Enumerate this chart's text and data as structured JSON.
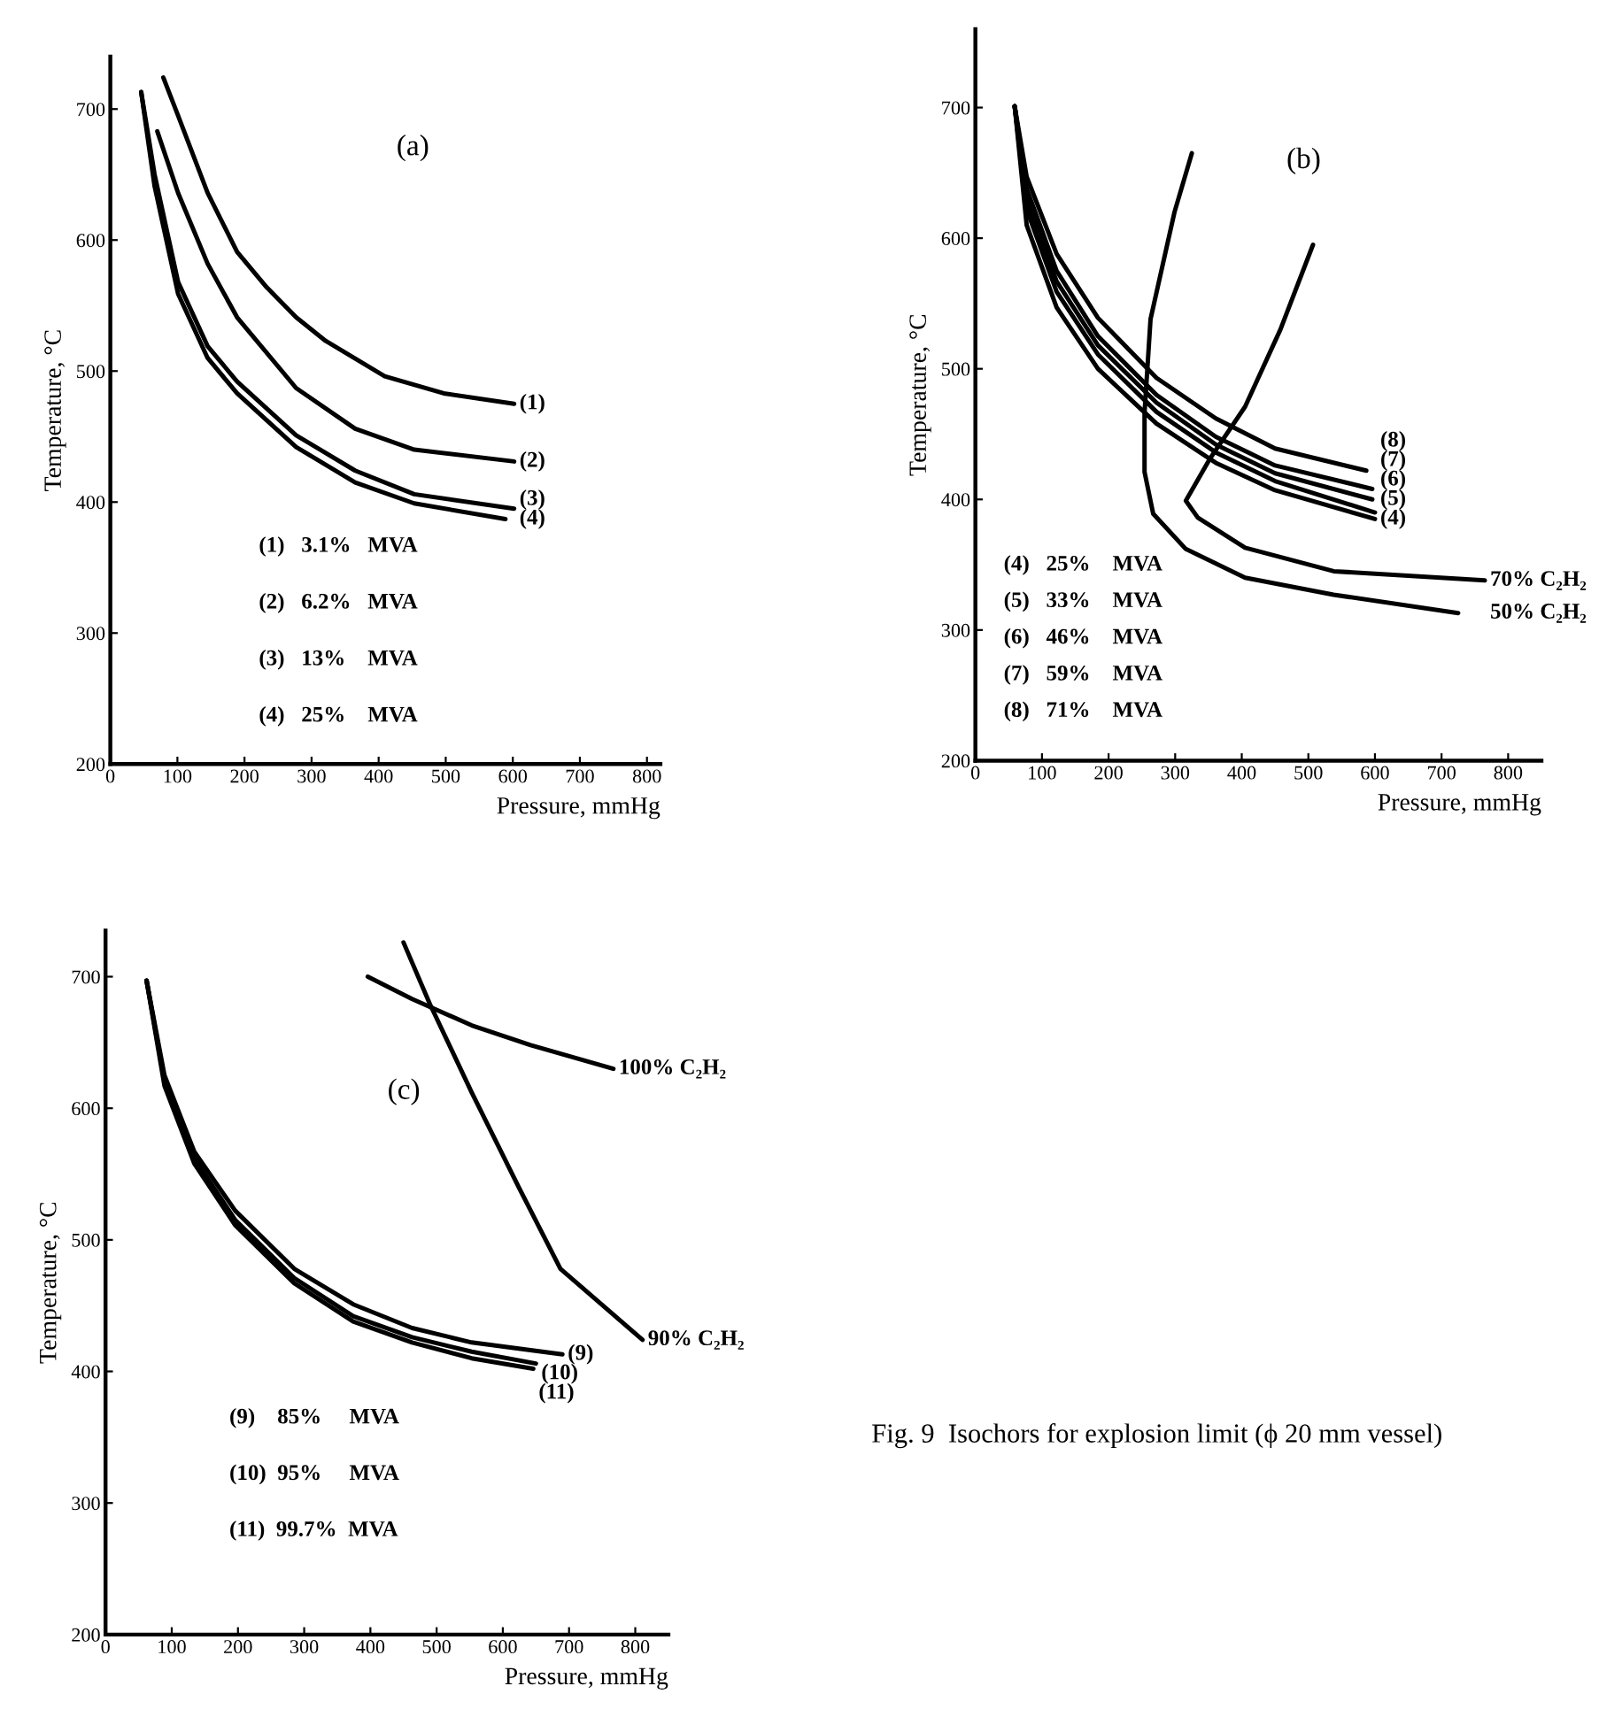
{
  "chart_data": [
    {
      "type": "line",
      "title": "(a)",
      "xlabel": "Pressure, mmHg",
      "ylabel": "Temperature, °C",
      "xlim": [
        0,
        820
      ],
      "ylim": [
        200,
        740
      ],
      "xticks": [
        0,
        100,
        200,
        300,
        400,
        500,
        600,
        700,
        800
      ],
      "yticks": [
        200,
        300,
        400,
        500,
        600,
        700
      ],
      "line_style": "solid",
      "annotations": [
        "(1)   3.1%   MVA",
        "(2)   6.2%   MVA",
        "(3)   13%    MVA",
        "(4)   25%    MVA"
      ],
      "series": [
        {
          "name": "(1)",
          "color": "#000000",
          "x": [
            79,
            101,
            145,
            189,
            233,
            277,
            321,
            409,
            497,
            602
          ],
          "values": [
            724,
            695,
            636,
            591,
            564,
            541,
            523,
            496,
            483,
            475
          ]
        },
        {
          "name": "(2)",
          "color": "#000000",
          "x": [
            70,
            101,
            145,
            189,
            277,
            365,
            453,
            602
          ],
          "values": [
            683,
            636,
            582,
            541,
            487,
            456,
            440,
            431
          ]
        },
        {
          "name": "(3)",
          "color": "#000000",
          "x": [
            46,
            66,
            101,
            145,
            189,
            277,
            365,
            453,
            602
          ],
          "values": [
            713,
            650,
            568,
            519,
            492,
            451,
            424,
            406,
            395
          ]
        },
        {
          "name": "(4)",
          "color": "#000000",
          "x": [
            46,
            66,
            101,
            145,
            189,
            277,
            365,
            453,
            589
          ],
          "values": [
            713,
            641,
            559,
            510,
            483,
            442,
            415,
            399,
            387
          ]
        }
      ]
    },
    {
      "type": "line",
      "title": "(b)",
      "xlabel": "Pressure, mmHg",
      "ylabel": "Temperature, °C",
      "xlim": [
        0,
        850
      ],
      "ylim": [
        200,
        760
      ],
      "xticks": [
        0,
        100,
        200,
        300,
        400,
        500,
        600,
        700,
        800
      ],
      "yticks": [
        200,
        300,
        400,
        500,
        600,
        700
      ],
      "line_style": "solid",
      "annotations": [
        "(4)   25%    MVA",
        "(5)   33%    MVA",
        "(6)   46%    MVA",
        "(7)   59%    MVA",
        "(8)   71%    MVA"
      ],
      "series": [
        {
          "name": "(8)",
          "color": "#000000",
          "x": [
            59,
            77,
            122,
            184,
            272,
            361,
            450,
            587
          ],
          "values": [
            701,
            647,
            588,
            539,
            493,
            462,
            439,
            422
          ]
        },
        {
          "name": "(7)",
          "color": "#000000",
          "x": [
            59,
            77,
            122,
            184,
            272,
            361,
            450,
            596
          ],
          "values": [
            701,
            638,
            575,
            525,
            480,
            448,
            426,
            408
          ]
        },
        {
          "name": "(6)",
          "color": "#000000",
          "x": [
            59,
            77,
            122,
            184,
            272,
            361,
            450,
            596
          ],
          "values": [
            701,
            630,
            567,
            518,
            474,
            442,
            420,
            400
          ]
        },
        {
          "name": "(5)",
          "color": "#000000",
          "x": [
            59,
            77,
            122,
            184,
            272,
            361,
            450,
            600
          ],
          "values": [
            701,
            622,
            559,
            511,
            467,
            436,
            414,
            390
          ]
        },
        {
          "name": "(4)",
          "color": "#000000",
          "x": [
            59,
            77,
            122,
            184,
            272,
            361,
            450,
            600
          ],
          "values": [
            701,
            610,
            547,
            500,
            458,
            428,
            407,
            385
          ]
        },
        {
          "name": "70% C₂H₂",
          "color": "#000000",
          "x": [
            507,
            458,
            405,
            352,
            316,
            334,
            405,
            538,
            765
          ],
          "values": [
            595,
            530,
            471,
            431,
            399,
            386,
            363,
            345,
            338
          ]
        },
        {
          "name": "50% C₂H₂",
          "color": "#000000",
          "x": [
            325,
            299,
            263,
            254,
            254,
            267,
            316,
            405,
            538,
            725
          ],
          "values": [
            665,
            620,
            538,
            466,
            421,
            389,
            362,
            340,
            327,
            313
          ]
        }
      ]
    },
    {
      "type": "line",
      "title": "(c)",
      "xlabel": "Pressure, mmHg",
      "ylabel": "Temperature, °C",
      "xlim": [
        0,
        850
      ],
      "ylim": [
        200,
        735
      ],
      "xticks": [
        0,
        100,
        200,
        300,
        400,
        500,
        600,
        700,
        800
      ],
      "yticks": [
        200,
        300,
        400,
        500,
        600,
        700
      ],
      "line_style": "solid",
      "annotations": [
        "(9)    85%     MVA",
        "(10)  95%     MVA",
        "(11)  99.7%  MVA",
        "Fig. 9  Isochors for explosion limit (ϕ 20 mm vessel)"
      ],
      "series": [
        {
          "name": "(9)",
          "color": "#000000",
          "x": [
            62,
            89,
            134,
            196,
            285,
            374,
            463,
            553,
            690
          ],
          "values": [
            697,
            625,
            567,
            522,
            478,
            451,
            433,
            422,
            413
          ]
        },
        {
          "name": "(10)",
          "color": "#000000",
          "x": [
            62,
            89,
            134,
            196,
            285,
            374,
            463,
            553,
            650
          ],
          "values": [
            697,
            621,
            562,
            515,
            471,
            442,
            426,
            415,
            406
          ]
        },
        {
          "name": "(11)",
          "color": "#000000",
          "x": [
            62,
            89,
            134,
            196,
            285,
            374,
            463,
            553,
            646
          ],
          "values": [
            697,
            617,
            558,
            511,
            467,
            438,
            422,
            410,
            402
          ]
        },
        {
          "name": "100% C₂H₂",
          "color": "#000000",
          "x": [
            396,
            463,
            553,
            642,
            767
          ],
          "values": [
            700,
            683,
            663,
            648,
            630
          ]
        },
        {
          "name": "90% C₂H₂",
          "color": "#000000",
          "x": [
            450,
            490,
            553,
            624,
            687,
            811
          ],
          "values": [
            726,
            679,
            612,
            540,
            478,
            424
          ]
        }
      ]
    }
  ]
}
